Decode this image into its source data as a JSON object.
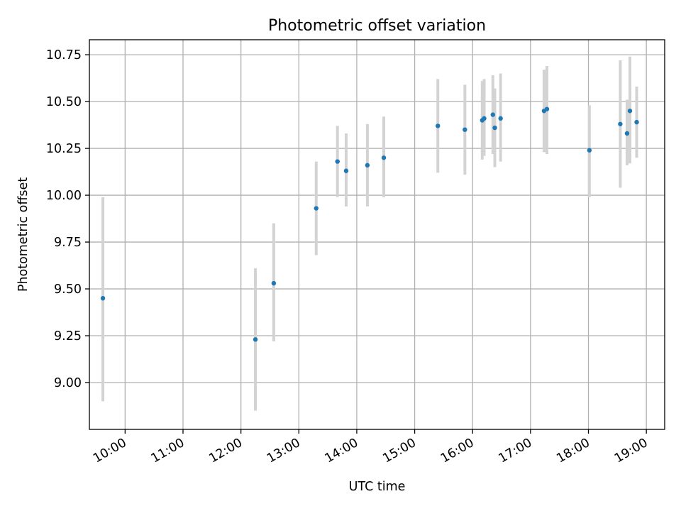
{
  "chart_data": {
    "type": "scatter",
    "title": "Photometric offset variation",
    "xlabel": "UTC time",
    "ylabel": "Photometric offset",
    "x_tick_labels": [
      "10:00",
      "11:00",
      "12:00",
      "13:00",
      "14:00",
      "15:00",
      "16:00",
      "17:00",
      "18:00",
      "19:00"
    ],
    "y_tick_labels": [
      "9.00",
      "9.25",
      "9.50",
      "9.75",
      "10.00",
      "10.25",
      "10.50",
      "10.75"
    ],
    "x_tick_values": [
      "10:00",
      "11:00",
      "12:00",
      "13:00",
      "14:00",
      "15:00",
      "16:00",
      "17:00",
      "18:00",
      "19:00"
    ],
    "y_tick_values": [
      9.0,
      9.25,
      9.5,
      9.75,
      10.0,
      10.25,
      10.5,
      10.75
    ],
    "xlim": [
      "09:23",
      "19:19"
    ],
    "ylim": [
      8.75,
      10.83
    ],
    "grid": true,
    "marker_color": "#1f77b4",
    "errorbar_color": "#d3d3d3",
    "points": [
      {
        "x": "09:37",
        "y": 9.45,
        "ylow": 8.9,
        "yhigh": 9.99
      },
      {
        "x": "12:15",
        "y": 9.23,
        "ylow": 8.85,
        "yhigh": 9.61
      },
      {
        "x": "12:34",
        "y": 9.53,
        "ylow": 9.22,
        "yhigh": 9.85
      },
      {
        "x": "13:18",
        "y": 9.93,
        "ylow": 9.68,
        "yhigh": 10.18
      },
      {
        "x": "13:40",
        "y": 10.18,
        "ylow": 9.99,
        "yhigh": 10.37
      },
      {
        "x": "13:49",
        "y": 10.13,
        "ylow": 9.94,
        "yhigh": 10.33
      },
      {
        "x": "14:11",
        "y": 10.16,
        "ylow": 9.94,
        "yhigh": 10.38
      },
      {
        "x": "14:28",
        "y": 10.2,
        "ylow": 9.99,
        "yhigh": 10.42
      },
      {
        "x": "15:24",
        "y": 10.37,
        "ylow": 10.12,
        "yhigh": 10.62
      },
      {
        "x": "15:52",
        "y": 10.35,
        "ylow": 10.11,
        "yhigh": 10.59
      },
      {
        "x": "16:10",
        "y": 10.4,
        "ylow": 10.19,
        "yhigh": 10.61
      },
      {
        "x": "16:12",
        "y": 10.41,
        "ylow": 10.21,
        "yhigh": 10.62
      },
      {
        "x": "16:21",
        "y": 10.43,
        "ylow": 10.22,
        "yhigh": 10.64
      },
      {
        "x": "16:23",
        "y": 10.36,
        "ylow": 10.15,
        "yhigh": 10.57
      },
      {
        "x": "16:29",
        "y": 10.41,
        "ylow": 10.18,
        "yhigh": 10.65
      },
      {
        "x": "17:14",
        "y": 10.45,
        "ylow": 10.23,
        "yhigh": 10.67
      },
      {
        "x": "17:17",
        "y": 10.46,
        "ylow": 10.22,
        "yhigh": 10.69
      },
      {
        "x": "18:01",
        "y": 10.24,
        "ylow": 9.99,
        "yhigh": 10.48
      },
      {
        "x": "18:33",
        "y": 10.38,
        "ylow": 10.04,
        "yhigh": 10.72
      },
      {
        "x": "18:40",
        "y": 10.33,
        "ylow": 10.16,
        "yhigh": 10.51
      },
      {
        "x": "18:43",
        "y": 10.45,
        "ylow": 10.17,
        "yhigh": 10.74
      },
      {
        "x": "18:50",
        "y": 10.39,
        "ylow": 10.2,
        "yhigh": 10.58
      }
    ]
  }
}
